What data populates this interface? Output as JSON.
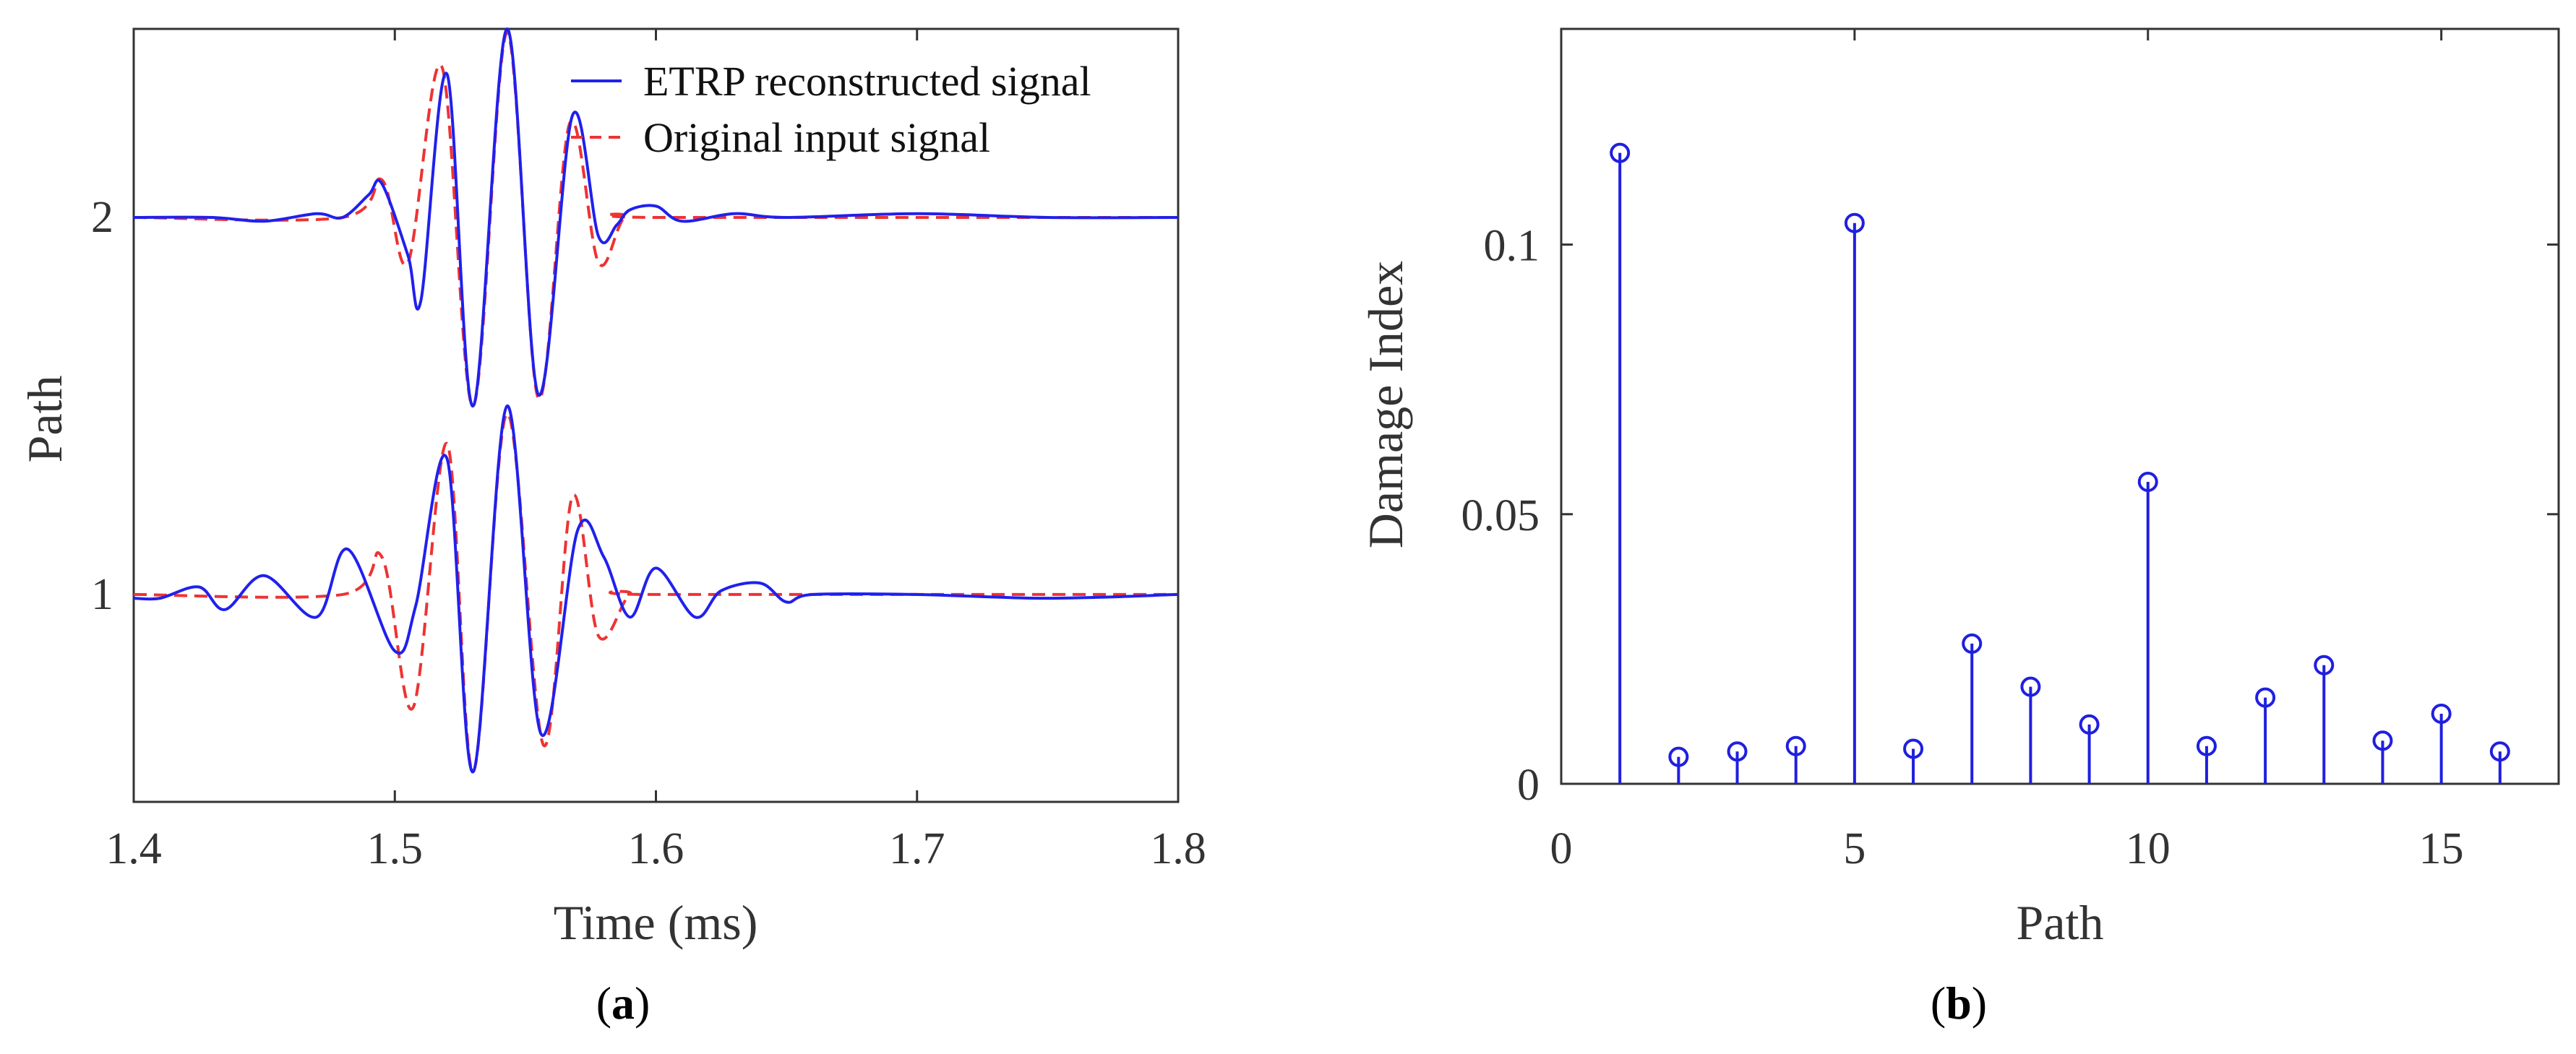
{
  "chart_data": [
    {
      "panel": "a",
      "caption_open": "(",
      "caption_letter": "a",
      "caption_close": ")",
      "type": "line",
      "xlabel": "Time (ms)",
      "ylabel": "Path",
      "xlim": [
        1.4,
        1.8
      ],
      "ylim": [
        0.45,
        2.5
      ],
      "xticks": [
        1.4,
        1.5,
        1.6,
        1.7,
        1.8
      ],
      "xtick_labels": [
        "1.4",
        "1.5",
        "1.6",
        "1.7",
        "1.8"
      ],
      "yticks": [
        1,
        2
      ],
      "ytick_labels": [
        "1",
        "2"
      ],
      "legend_position": "top-right",
      "series": [
        {
          "name": "ETRP reconstructed signal",
          "color": "#2020ee",
          "style": "solid",
          "traces": [
            {
              "offset": 2,
              "points": [
                [
                  1.4,
                  2.0
                ],
                [
                  1.43,
                  2.0
                ],
                [
                  1.45,
                  1.99
                ],
                [
                  1.47,
                  2.01
                ],
                [
                  1.48,
                  2.0
                ],
                [
                  1.49,
                  2.06
                ],
                [
                  1.495,
                  2.09
                ],
                [
                  1.505,
                  1.9
                ],
                [
                  1.51,
                  1.78
                ],
                [
                  1.52,
                  2.38
                ],
                [
                  1.53,
                  1.5
                ],
                [
                  1.543,
                  2.5
                ],
                [
                  1.555,
                  1.53
                ],
                [
                  1.568,
                  2.27
                ],
                [
                  1.578,
                  1.95
                ],
                [
                  1.585,
                  1.98
                ],
                [
                  1.59,
                  2.02
                ],
                [
                  1.6,
                  2.03
                ],
                [
                  1.61,
                  1.99
                ],
                [
                  1.63,
                  2.01
                ],
                [
                  1.65,
                  2.0
                ],
                [
                  1.7,
                  2.01
                ],
                [
                  1.75,
                  2.0
                ],
                [
                  1.8,
                  2.0
                ]
              ]
            },
            {
              "offset": 1,
              "points": [
                [
                  1.4,
                  0.99
                ],
                [
                  1.41,
                  0.99
                ],
                [
                  1.425,
                  1.02
                ],
                [
                  1.435,
                  0.96
                ],
                [
                  1.45,
                  1.05
                ],
                [
                  1.47,
                  0.94
                ],
                [
                  1.482,
                  1.12
                ],
                [
                  1.5,
                  0.85
                ],
                [
                  1.508,
                  0.97
                ],
                [
                  1.52,
                  1.36
                ],
                [
                  1.53,
                  0.53
                ],
                [
                  1.543,
                  1.5
                ],
                [
                  1.556,
                  0.63
                ],
                [
                  1.57,
                  1.17
                ],
                [
                  1.58,
                  1.1
                ],
                [
                  1.59,
                  0.94
                ],
                [
                  1.6,
                  1.07
                ],
                [
                  1.615,
                  0.94
                ],
                [
                  1.625,
                  1.01
                ],
                [
                  1.64,
                  1.03
                ],
                [
                  1.65,
                  0.98
                ],
                [
                  1.66,
                  1.0
                ],
                [
                  1.7,
                  1.0
                ],
                [
                  1.75,
                  0.99
                ],
                [
                  1.8,
                  1.0
                ]
              ]
            }
          ]
        },
        {
          "name": "Original input signal",
          "color": "#ee3333",
          "style": "dashed",
          "traces": [
            {
              "offset": 2,
              "points": [
                [
                  1.4,
                  2.0
                ],
                [
                  1.48,
                  2.0
                ],
                [
                  1.495,
                  2.1
                ],
                [
                  1.505,
                  1.88
                ],
                [
                  1.518,
                  2.4
                ],
                [
                  1.53,
                  1.5
                ],
                [
                  1.543,
                  2.49
                ],
                [
                  1.555,
                  1.52
                ],
                [
                  1.567,
                  2.25
                ],
                [
                  1.578,
                  1.88
                ],
                [
                  1.588,
                  2.0
                ],
                [
                  1.6,
                  2.0
                ],
                [
                  1.8,
                  2.0
                ]
              ]
            },
            {
              "offset": 1,
              "points": [
                [
                  1.4,
                  1.0
                ],
                [
                  1.48,
                  1.0
                ],
                [
                  1.495,
                  1.1
                ],
                [
                  1.507,
                  0.7
                ],
                [
                  1.52,
                  1.4
                ],
                [
                  1.53,
                  0.53
                ],
                [
                  1.543,
                  1.48
                ],
                [
                  1.557,
                  0.6
                ],
                [
                  1.568,
                  1.26
                ],
                [
                  1.578,
                  0.89
                ],
                [
                  1.59,
                  1.0
                ],
                [
                  1.6,
                  1.0
                ],
                [
                  1.8,
                  1.0
                ]
              ]
            }
          ]
        }
      ]
    },
    {
      "panel": "b",
      "caption_open": "(",
      "caption_letter": "b",
      "caption_close": ")",
      "type": "stem",
      "xlabel": "Path",
      "ylabel": "Damage Index",
      "xlim": [
        0,
        17
      ],
      "ylim": [
        0,
        0.14
      ],
      "xticks": [
        0,
        5,
        10,
        15
      ],
      "xtick_labels": [
        "0",
        "5",
        "10",
        "15"
      ],
      "yticks": [
        0,
        0.05,
        0.1
      ],
      "ytick_labels": [
        "0",
        "0.05",
        "0.1"
      ],
      "color": "#1f1fe0",
      "x": [
        1,
        2,
        3,
        4,
        5,
        6,
        7,
        8,
        9,
        10,
        11,
        12,
        13,
        14,
        15,
        16
      ],
      "values": [
        0.117,
        0.005,
        0.006,
        0.007,
        0.104,
        0.0065,
        0.026,
        0.018,
        0.011,
        0.056,
        0.007,
        0.016,
        0.022,
        0.008,
        0.013,
        0.006
      ]
    }
  ]
}
